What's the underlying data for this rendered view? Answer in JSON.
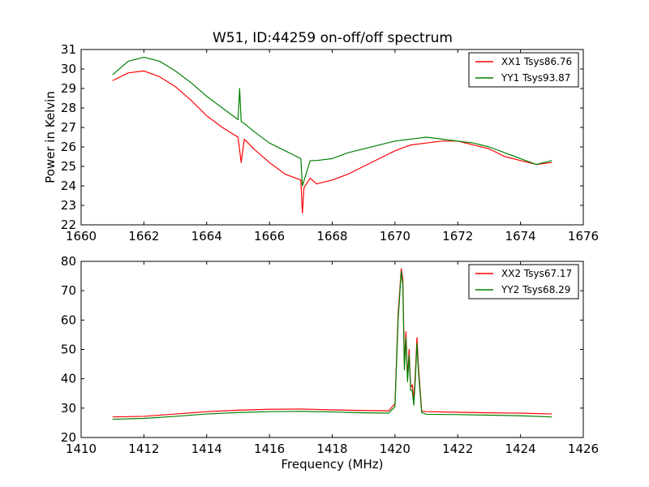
{
  "title": "W51, ID:44259 on-off/off spectrum",
  "chart_data": [
    {
      "type": "line",
      "xlabel": "",
      "ylabel": "Power in Kelvin",
      "xlim": [
        1660,
        1676
      ],
      "ylim": [
        22,
        31
      ],
      "xticks": [
        "1660",
        "1662",
        "1664",
        "1666",
        "1668",
        "1670",
        "1672",
        "1674",
        "1676"
      ],
      "yticks": [
        "22",
        "23",
        "24",
        "25",
        "26",
        "27",
        "28",
        "29",
        "30",
        "31"
      ],
      "legend_position": "top-right",
      "series": [
        {
          "name": "XX1 Tsys86.76",
          "color": "#ff0000",
          "x": [
            1661.0,
            1661.5,
            1662.0,
            1662.5,
            1663.0,
            1663.5,
            1664.0,
            1664.5,
            1665.0,
            1665.1,
            1665.2,
            1665.5,
            1666.0,
            1666.5,
            1667.0,
            1667.05,
            1667.1,
            1667.3,
            1667.5,
            1668.0,
            1668.5,
            1669.0,
            1669.5,
            1670.0,
            1670.5,
            1671.0,
            1671.5,
            1672.0,
            1672.5,
            1673.0,
            1673.5,
            1674.0,
            1674.5,
            1675.0
          ],
          "values": [
            29.4,
            29.8,
            29.9,
            29.6,
            29.1,
            28.4,
            27.6,
            27.0,
            26.5,
            25.2,
            26.4,
            25.9,
            25.2,
            24.6,
            24.3,
            22.6,
            23.9,
            24.4,
            24.1,
            24.3,
            24.6,
            25.0,
            25.4,
            25.8,
            26.1,
            26.2,
            26.3,
            26.3,
            26.1,
            25.9,
            25.5,
            25.3,
            25.1,
            25.2
          ]
        },
        {
          "name": "YY1 Tsys93.87",
          "color": "#008000",
          "x": [
            1661.0,
            1661.5,
            1662.0,
            1662.5,
            1663.0,
            1663.5,
            1664.0,
            1664.5,
            1665.0,
            1665.05,
            1665.1,
            1665.2,
            1665.5,
            1666.0,
            1666.5,
            1667.0,
            1667.05,
            1667.3,
            1667.5,
            1668.0,
            1668.5,
            1669.0,
            1669.5,
            1670.0,
            1670.5,
            1671.0,
            1671.5,
            1672.0,
            1672.5,
            1673.0,
            1673.5,
            1674.0,
            1674.5,
            1675.0
          ],
          "values": [
            29.7,
            30.4,
            30.6,
            30.4,
            29.9,
            29.3,
            28.6,
            28.0,
            27.4,
            29.0,
            27.3,
            27.2,
            26.8,
            26.2,
            25.8,
            25.4,
            24.0,
            25.3,
            25.3,
            25.4,
            25.7,
            25.9,
            26.1,
            26.3,
            26.4,
            26.5,
            26.4,
            26.3,
            26.2,
            26.0,
            25.7,
            25.4,
            25.1,
            25.3
          ]
        }
      ]
    },
    {
      "type": "line",
      "xlabel": "Frequency (MHz)",
      "ylabel": "",
      "xlim": [
        1410,
        1426
      ],
      "ylim": [
        20,
        80
      ],
      "xticks": [
        "1410",
        "1412",
        "1414",
        "1416",
        "1418",
        "1420",
        "1422",
        "1424",
        "1426"
      ],
      "yticks": [
        "20",
        "30",
        "40",
        "50",
        "60",
        "70",
        "80"
      ],
      "legend_position": "top-right",
      "series": [
        {
          "name": "XX2 Tsys67.17",
          "color": "#ff0000",
          "x": [
            1411.0,
            1412.0,
            1413.0,
            1414.0,
            1415.0,
            1416.0,
            1417.0,
            1418.0,
            1419.0,
            1419.8,
            1420.0,
            1420.1,
            1420.2,
            1420.25,
            1420.3,
            1420.35,
            1420.4,
            1420.45,
            1420.5,
            1420.55,
            1420.6,
            1420.65,
            1420.7,
            1420.75,
            1420.85,
            1421.0,
            1422.0,
            1423.0,
            1424.0,
            1425.0
          ],
          "values": [
            27.0,
            27.2,
            28.0,
            28.8,
            29.3,
            29.6,
            29.7,
            29.4,
            29.2,
            29.1,
            31.5,
            62.0,
            77.5,
            74.0,
            45.0,
            56.0,
            40.0,
            50.0,
            37.0,
            38.0,
            33.0,
            42.0,
            54.0,
            44.0,
            29.0,
            28.8,
            28.6,
            28.4,
            28.3,
            28.0
          ]
        },
        {
          "name": "YY2 Tsys68.29",
          "color": "#008000",
          "x": [
            1411.0,
            1412.0,
            1413.0,
            1414.0,
            1415.0,
            1416.0,
            1417.0,
            1418.0,
            1419.0,
            1419.8,
            1420.0,
            1420.1,
            1420.2,
            1420.25,
            1420.3,
            1420.35,
            1420.4,
            1420.45,
            1420.5,
            1420.55,
            1420.6,
            1420.65,
            1420.7,
            1420.75,
            1420.85,
            1421.0,
            1422.0,
            1423.0,
            1424.0,
            1425.0
          ],
          "values": [
            26.2,
            26.5,
            27.2,
            28.0,
            28.5,
            28.8,
            28.9,
            28.7,
            28.4,
            28.3,
            30.5,
            60.0,
            76.5,
            72.0,
            43.0,
            54.0,
            39.0,
            48.0,
            36.0,
            36.0,
            31.0,
            40.0,
            52.0,
            42.0,
            28.5,
            27.9,
            27.8,
            27.6,
            27.4,
            27.0
          ]
        }
      ]
    }
  ]
}
